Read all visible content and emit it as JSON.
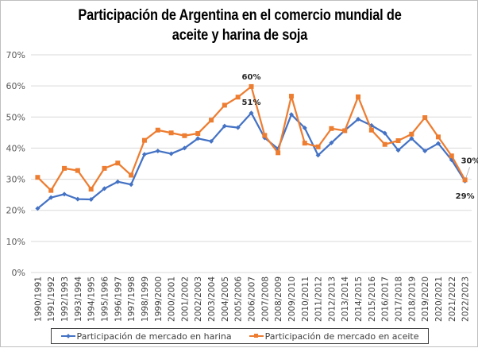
{
  "chart_data": {
    "type": "line",
    "title": "Participación de Argentina en el comercio mundial de aceite y harina de soja",
    "title_lines": [
      "Participación de Argentina en el comercio mundial de",
      "aceite y harina de soja"
    ],
    "xlabel": "",
    "ylabel": "",
    "ylim": [
      0,
      70
    ],
    "y_ticks": [
      "0%",
      "10%",
      "20%",
      "30%",
      "40%",
      "50%",
      "60%",
      "70%"
    ],
    "y_tick_values": [
      0,
      10,
      20,
      30,
      40,
      50,
      60,
      70
    ],
    "grid": true,
    "legend_position": "bottom",
    "categories": [
      "1990/1991",
      "1991/1992",
      "1992/1993",
      "1993/1994",
      "1994/1995",
      "1995/1996",
      "1996/1997",
      "1997/1998",
      "1998/1999",
      "1999/2000",
      "2000/2001",
      "2001/2002",
      "2002/2003",
      "2003/2004",
      "2004/2005",
      "2005/2006",
      "2006/2007",
      "2007/2008",
      "2008/2009",
      "2009/2010",
      "2010/2011",
      "2011/2012",
      "2012/2013",
      "2013/2014",
      "2014/2015",
      "2015/2016",
      "2016/2017",
      "2017/2018",
      "2018/2019",
      "2019/2020",
      "2020/2021",
      "2021/2022",
      "2022/2023"
    ],
    "series": [
      {
        "name": "Participación de mercado en harina",
        "color": "#4472c4",
        "marker": "diamond",
        "values": [
          20.6,
          24.1,
          25.2,
          23.6,
          23.5,
          27.0,
          29.2,
          28.3,
          38.0,
          39.1,
          38.2,
          40.0,
          43.1,
          42.2,
          47.1,
          46.6,
          51.3,
          43.3,
          39.8,
          50.8,
          46.5,
          37.7,
          41.7,
          45.7,
          49.3,
          47.3,
          44.8,
          39.3,
          43.1,
          39.1,
          41.5,
          36.2,
          29.4
        ]
      },
      {
        "name": "Participación de mercado en aceite",
        "color": "#ed7d31",
        "marker": "square",
        "values": [
          30.6,
          26.4,
          33.5,
          32.8,
          26.8,
          33.5,
          35.2,
          31.3,
          42.5,
          45.8,
          44.9,
          44.0,
          44.7,
          49.0,
          53.8,
          56.4,
          59.8,
          44.1,
          38.5,
          56.7,
          41.6,
          40.4,
          46.3,
          45.6,
          56.5,
          45.8,
          41.2,
          42.4,
          44.5,
          49.8,
          43.6,
          37.5,
          29.8
        ]
      }
    ],
    "annotations": [
      {
        "series": 1,
        "category": "2006/2007",
        "text": "60%"
      },
      {
        "series": 0,
        "category": "2006/2007",
        "text": "51%"
      },
      {
        "series": 1,
        "category": "2022/2023",
        "text": "30%"
      },
      {
        "series": 0,
        "category": "2022/2023",
        "text": "29%"
      }
    ]
  },
  "legend": {
    "items": [
      {
        "label": "Participación de mercado en harina",
        "color": "#4472c4",
        "marker": "diamond"
      },
      {
        "label": "Participación de mercado en aceite",
        "color": "#ed7d31",
        "marker": "square"
      }
    ]
  }
}
